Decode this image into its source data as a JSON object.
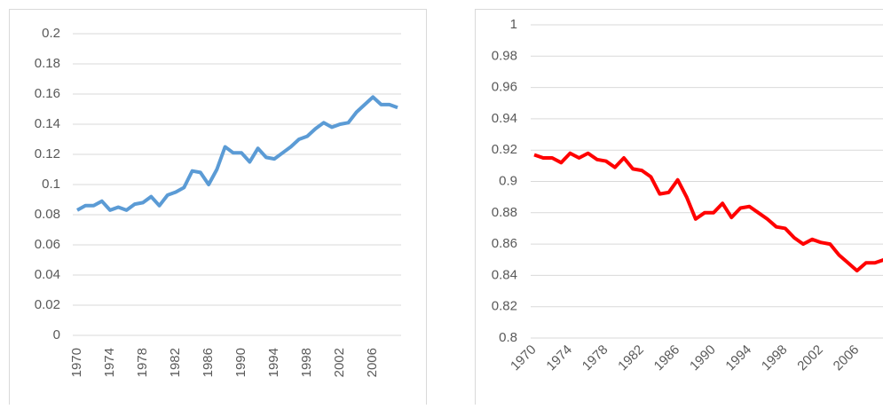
{
  "chart_data": [
    {
      "type": "line",
      "x": [
        1970,
        1971,
        1972,
        1973,
        1974,
        1975,
        1976,
        1977,
        1978,
        1979,
        1980,
        1981,
        1982,
        1983,
        1984,
        1985,
        1986,
        1987,
        1988,
        1989,
        1990,
        1991,
        1992,
        1993,
        1994,
        1995,
        1996,
        1997,
        1998,
        1999,
        2000,
        2001,
        2002,
        2003,
        2004,
        2005,
        2006,
        2007,
        2008,
        2009
      ],
      "xlim": [
        1970,
        2009
      ],
      "xticks": [
        1970,
        1974,
        1978,
        1982,
        1986,
        1990,
        1994,
        1998,
        2002,
        2006
      ],
      "series": [
        {
          "color": "#5b9bd5",
          "values": [
            0.083,
            0.086,
            0.086,
            0.089,
            0.083,
            0.085,
            0.083,
            0.087,
            0.088,
            0.092,
            0.086,
            0.093,
            0.095,
            0.098,
            0.109,
            0.108,
            0.1,
            0.11,
            0.125,
            0.121,
            0.121,
            0.115,
            0.124,
            0.118,
            0.117,
            0.121,
            0.125,
            0.13,
            0.132,
            0.137,
            0.141,
            0.138,
            0.14,
            0.141,
            0.148,
            0.153,
            0.158,
            0.153,
            0.153,
            0.151
          ]
        }
      ],
      "ylim": [
        0,
        0.2
      ],
      "yticks": [
        0,
        0.02,
        0.04,
        0.06,
        0.08,
        0.1,
        0.12,
        0.14,
        0.16,
        0.18,
        0.2
      ],
      "grid": true
    },
    {
      "type": "line",
      "x": [
        1970,
        1971,
        1972,
        1973,
        1974,
        1975,
        1976,
        1977,
        1978,
        1979,
        1980,
        1981,
        1982,
        1983,
        1984,
        1985,
        1986,
        1987,
        1988,
        1989,
        1990,
        1991,
        1992,
        1993,
        1994,
        1995,
        1996,
        1997,
        1998,
        1999,
        2000,
        2001,
        2002,
        2003,
        2004,
        2005,
        2006,
        2007,
        2008,
        2009
      ],
      "xlim": [
        1970,
        2009
      ],
      "xticks": [
        1970,
        1974,
        1978,
        1982,
        1986,
        1990,
        1994,
        1998,
        2002,
        2006
      ],
      "series": [
        {
          "color": "#ff0000",
          "values": [
            0.917,
            0.915,
            0.915,
            0.912,
            0.918,
            0.915,
            0.918,
            0.914,
            0.913,
            0.909,
            0.915,
            0.908,
            0.907,
            0.903,
            0.892,
            0.893,
            0.901,
            0.89,
            0.876,
            0.88,
            0.88,
            0.886,
            0.877,
            0.883,
            0.884,
            0.88,
            0.876,
            0.871,
            0.87,
            0.864,
            0.86,
            0.863,
            0.861,
            0.86,
            0.853,
            0.848,
            0.843,
            0.848,
            0.848,
            0.85
          ]
        }
      ],
      "ylim": [
        0.8,
        1
      ],
      "yticks": [
        0.8,
        0.82,
        0.84,
        0.86,
        0.88,
        0.9,
        0.92,
        0.94,
        0.96,
        0.98,
        1
      ],
      "grid": true
    }
  ]
}
